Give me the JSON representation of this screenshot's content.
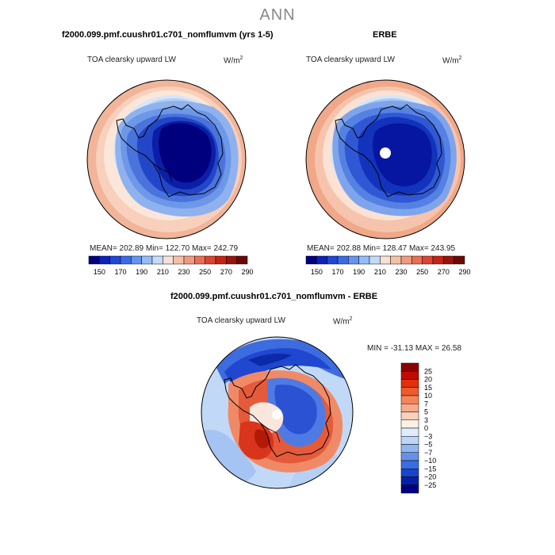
{
  "title": "ANN",
  "panels": [
    {
      "id": "model",
      "title": "f2000.099.pmf.cuushr01.c701_nomflumvm (yrs 1-5)",
      "variable": "TOA clearsky upward LW",
      "units_base": "W/m",
      "units_exp": "2",
      "stats": "MEAN= 202.89   Min= 122.70   Max= 242.79",
      "colorbar_ticks": [
        "150",
        "170",
        "190",
        "210",
        "230",
        "250",
        "270",
        "290"
      ],
      "colorbar_colors": [
        "#00007f",
        "#0c22b8",
        "#1f47d8",
        "#3b6ae6",
        "#6394ef",
        "#93bcf5",
        "#c2dcf9",
        "#f7e1d6",
        "#f6c0a8",
        "#f19a7d",
        "#ea6f52",
        "#dd4430",
        "#c52413",
        "#99130a",
        "#6a0804"
      ]
    },
    {
      "id": "obs",
      "title": "ERBE",
      "variable": "TOA clearsky upward LW",
      "units_base": "W/m",
      "units_exp": "2",
      "stats": "MEAN= 202.88   Min= 128.47   Max= 243.95",
      "colorbar_ticks": [
        "150",
        "170",
        "190",
        "210",
        "230",
        "250",
        "270",
        "290"
      ],
      "colorbar_colors": [
        "#00007f",
        "#0c22b8",
        "#1f47d8",
        "#3b6ae6",
        "#6394ef",
        "#93bcf5",
        "#c2dcf9",
        "#f7e1d6",
        "#f6c0a8",
        "#f19a7d",
        "#ea6f52",
        "#dd4430",
        "#c52413",
        "#99130a",
        "#6a0804"
      ]
    },
    {
      "id": "diff",
      "title": "f2000.099.pmf.cuushr01.c701_nomflumvm - ERBE",
      "variable": "TOA clearsky upward LW",
      "units_base": "W/m",
      "units_exp": "2",
      "stats": "MIN = -31.13  MAX =  26.58",
      "colorbar_ticks": [
        "25",
        "20",
        "15",
        "10",
        "7",
        "5",
        "3",
        "0",
        "−3",
        "−5",
        "−7",
        "−10",
        "−15",
        "−20",
        "−25"
      ],
      "colorbar_colors": [
        "#8c0000",
        "#c00c00",
        "#e2300c",
        "#ef5a2a",
        "#f5845a",
        "#f8ab8a",
        "#fbd1bb",
        "#fdf0e6",
        "#e0ecfb",
        "#bed6f7",
        "#93b6f0",
        "#6391ea",
        "#3a6ce2",
        "#1a44cc",
        "#0620a3",
        "#000080"
      ]
    }
  ]
}
